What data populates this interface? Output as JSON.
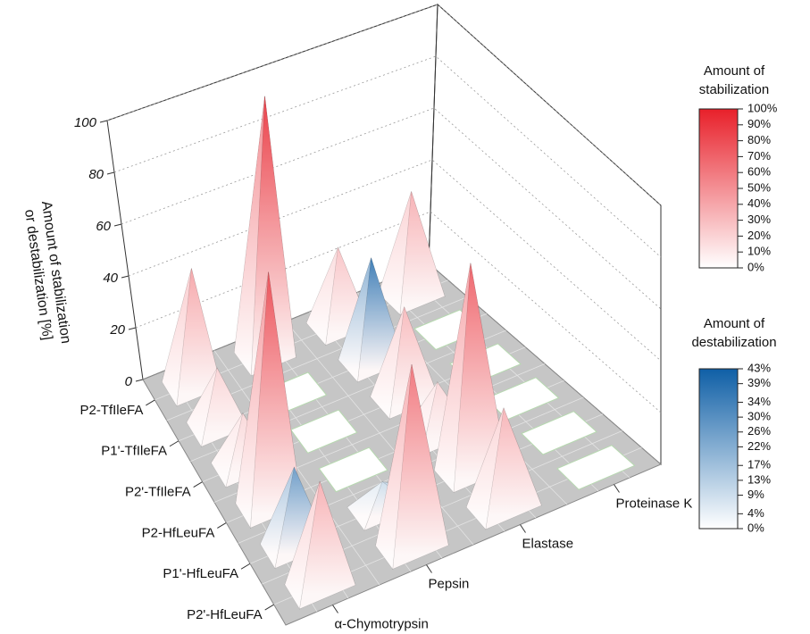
{
  "chart_data": {
    "type": "pyramid3d",
    "rows": [
      "P2-TfIleFA",
      "P1'-TfIleFA",
      "P2'-TfIleFA",
      "P2-HfLeuFA",
      "P1'-HfLeuFA",
      "P2'-HfLeuFA"
    ],
    "columns": [
      "α-Chymotrypsin",
      "Pepsin",
      "Elastase",
      "Proteinase K"
    ],
    "zlabel": [
      "Amount of stabilization",
      "or destabilization [%]"
    ],
    "zlim": [
      0,
      100
    ],
    "zticks": [
      0,
      20,
      40,
      60,
      80,
      100
    ],
    "series": [
      {
        "name_lines": [
          "Amount of",
          "stabilization"
        ],
        "color": "#e8202a",
        "lim": [
          0,
          100
        ],
        "ticks": [
          {
            "value": 0,
            "label": "0%"
          },
          {
            "value": 10,
            "label": "10%"
          },
          {
            "value": 20,
            "label": "20%"
          },
          {
            "value": 30,
            "label": "30%"
          },
          {
            "value": 40,
            "label": "40%"
          },
          {
            "value": 50,
            "label": "50%"
          },
          {
            "value": 60,
            "label": "60%"
          },
          {
            "value": 70,
            "label": "70%"
          },
          {
            "value": 80,
            "label": "80%"
          },
          {
            "value": 90,
            "label": "90%"
          },
          {
            "value": 100,
            "label": "100%"
          }
        ],
        "values": [
          [
            45,
            100,
            30,
            40
          ],
          [
            22,
            0,
            null,
            0
          ],
          [
            20,
            0,
            35,
            0
          ],
          [
            90,
            0,
            20,
            0
          ],
          [
            null,
            null,
            80,
            0
          ],
          [
            40,
            70,
            38,
            0
          ]
        ]
      },
      {
        "name_lines": [
          "Amount of",
          "destabilization"
        ],
        "color": "#0f5fa6",
        "lim": [
          0,
          43
        ],
        "ticks": [
          {
            "value": 0,
            "label": "0%"
          },
          {
            "value": 4,
            "label": "4%"
          },
          {
            "value": 9,
            "label": "9%"
          },
          {
            "value": 13,
            "label": "13%"
          },
          {
            "value": 17,
            "label": "17%"
          },
          {
            "value": 22,
            "label": "22%"
          },
          {
            "value": 26,
            "label": "26%"
          },
          {
            "value": 30,
            "label": "30%"
          },
          {
            "value": 34,
            "label": "34%"
          },
          {
            "value": 39,
            "label": "39%"
          },
          {
            "value": 43,
            "label": "43%"
          }
        ],
        "values": [
          [
            null,
            null,
            null,
            null
          ],
          [
            null,
            null,
            40,
            null
          ],
          [
            null,
            null,
            null,
            null
          ],
          [
            null,
            null,
            null,
            null
          ],
          [
            30,
            10,
            null,
            null
          ],
          [
            null,
            null,
            null,
            null
          ]
        ]
      }
    ]
  }
}
